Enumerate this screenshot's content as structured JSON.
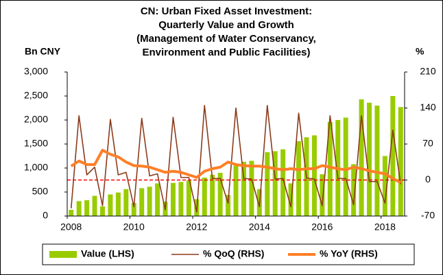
{
  "chart_data": {
    "type": "bar_line",
    "title": [
      "CN: Urban Fixed Asset Investment:",
      "Quarterly Value and Growth",
      "(Management of Water Conservancy,",
      "Environment and Public Facilities)"
    ],
    "y_label": "Bn CNY",
    "y2_label": "%",
    "categories": [
      "2008",
      null,
      null,
      null,
      null,
      null,
      null,
      null,
      "2010",
      null,
      null,
      null,
      null,
      null,
      null,
      null,
      "2012",
      null,
      null,
      null,
      null,
      null,
      null,
      null,
      "2014",
      null,
      null,
      null,
      null,
      null,
      null,
      null,
      "2016",
      null,
      null,
      null,
      null,
      null,
      null,
      null,
      "2018",
      null,
      null
    ],
    "series": [
      {
        "name": "Value (LHS)",
        "kind": "bar",
        "color": "#99cc00",
        "values": [
          130,
          310,
          330,
          420,
          200,
          450,
          490,
          560,
          270,
          580,
          610,
          680,
          300,
          690,
          710,
          740,
          350,
          800,
          860,
          900,
          440,
          1050,
          1130,
          1150,
          560,
          1330,
          1350,
          1390,
          680,
          1560,
          1640,
          1680,
          870,
          1960,
          2000,
          2050,
          1080,
          2430,
          2360,
          2300,
          1250,
          2500,
          2270
        ]
      },
      {
        "name": "% QoQ (RHS)",
        "kind": "line",
        "axis": "y2",
        "color": "#8b3a1a",
        "values": [
          -55,
          125,
          10,
          25,
          -50,
          118,
          10,
          15,
          -52,
          120,
          8,
          12,
          -58,
          122,
          5,
          5,
          -62,
          145,
          3,
          3,
          -45,
          140,
          3,
          2,
          -52,
          145,
          2,
          3,
          -52,
          130,
          4,
          2,
          -50,
          125,
          3,
          3,
          -48,
          125,
          -3,
          -3,
          -45,
          97,
          -8
        ]
      },
      {
        "name": "% YoY (RHS)",
        "kind": "line",
        "axis": "y2",
        "color": "#ff7f27",
        "values": [
          27,
          37,
          30,
          30,
          58,
          50,
          45,
          35,
          28,
          27,
          25,
          20,
          15,
          17,
          15,
          10,
          5,
          17,
          22,
          25,
          35,
          30,
          28,
          27,
          27,
          25,
          22,
          20,
          22,
          20,
          22,
          22,
          28,
          25,
          22,
          20,
          25,
          22,
          18,
          15,
          12,
          3,
          -5
        ]
      }
    ],
    "ref_line": {
      "value": 0,
      "axis": "y2",
      "color": "#ff0000"
    },
    "ylim": [
      0,
      3000
    ],
    "yticks": [
      0,
      {
        "value": 500,
        "label": "500"
      },
      {
        "value": 1000,
        "label": "1,000"
      },
      {
        "value": 1500,
        "label": "1,500"
      },
      {
        "value": 2000,
        "label": "2,000"
      },
      {
        "value": 2500,
        "label": "2,500"
      },
      {
        "value": 3000,
        "label": "3,000"
      }
    ],
    "y2lim": [
      -70,
      210
    ],
    "y2ticks": [
      -70,
      0,
      70,
      140,
      210
    ]
  }
}
